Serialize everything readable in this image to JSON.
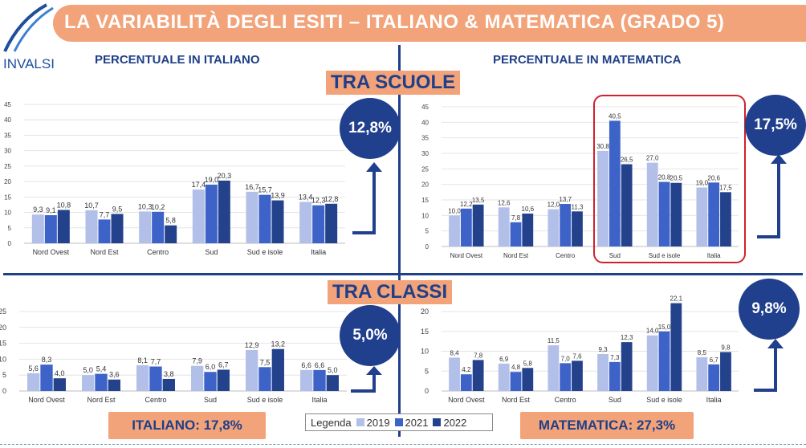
{
  "header": {
    "title": "LA VARIABILITÀ DEGLI ESITI – ITALIANO & MATEMATICA (GRADO 5)",
    "logo": "INVALSI"
  },
  "panels": {
    "left_title": "PERCENTUALE IN ITALIANO",
    "right_title": "PERCENTUALE IN MATEMATICA"
  },
  "sections": {
    "schools": "TRA SCUOLE",
    "classes": "TRA CLASSI"
  },
  "badges": {
    "ita_scuole": "12,8%",
    "mat_scuole": "17,5%",
    "ita_classi": "5,0%",
    "mat_classi": "9,8%"
  },
  "totals": {
    "italiano": "ITALIANO: 17,8%",
    "matematica": "MATEMATICA: 27,3%"
  },
  "legend": {
    "title": "Legenda",
    "items": [
      "2019",
      "2021",
      "2022"
    ]
  },
  "colors": {
    "s2019": "#b2bfe8",
    "s2021": "#3d63c9",
    "s2022": "#24428c",
    "orange": "#f2a37a",
    "navy": "#1f3f88",
    "red": "#d0212e"
  },
  "chart_data": [
    {
      "id": "ita_scuole",
      "type": "bar",
      "categories": [
        "Nord Ovest",
        "Nord Est",
        "Centro",
        "Sud",
        "Sud e isole",
        "Italia"
      ],
      "series": [
        {
          "name": "2019",
          "values": [
            9.3,
            10.7,
            10.3,
            17.4,
            16.7,
            13.4
          ]
        },
        {
          "name": "2021",
          "values": [
            9.1,
            7.7,
            10.2,
            19.0,
            15.7,
            12.3
          ]
        },
        {
          "name": "2022",
          "values": [
            10.8,
            9.5,
            5.8,
            20.3,
            13.9,
            12.8
          ]
        }
      ],
      "ylim": [
        0,
        45
      ],
      "yticks": [
        0,
        5,
        10,
        15,
        20,
        25,
        30,
        35,
        40,
        45
      ]
    },
    {
      "id": "mat_scuole",
      "type": "bar",
      "categories": [
        "Nord Ovest",
        "Nord Est",
        "Centro",
        "Sud",
        "Sud e isole",
        "Italia"
      ],
      "series": [
        {
          "name": "2019",
          "values": [
            10.0,
            12.6,
            12.0,
            30.8,
            27.0,
            19.0
          ]
        },
        {
          "name": "2021",
          "values": [
            12.2,
            7.8,
            13.7,
            40.5,
            20.8,
            20.6
          ]
        },
        {
          "name": "2022",
          "values": [
            13.5,
            10.6,
            11.3,
            26.5,
            20.5,
            17.5
          ]
        }
      ],
      "ylim": [
        0,
        45
      ],
      "yticks": [
        0,
        5,
        10,
        15,
        20,
        25,
        30,
        35,
        40,
        45
      ]
    },
    {
      "id": "ita_classi",
      "type": "bar",
      "categories": [
        "Nord Ovest",
        "Nord Est",
        "Centro",
        "Sud",
        "Sud e isole",
        "Italia"
      ],
      "series": [
        {
          "name": "2019",
          "values": [
            5.6,
            5.0,
            8.1,
            7.9,
            12.9,
            6.6
          ]
        },
        {
          "name": "2021",
          "values": [
            8.3,
            5.4,
            7.7,
            6.0,
            7.5,
            6.6
          ]
        },
        {
          "name": "2022",
          "values": [
            4.0,
            3.6,
            3.8,
            6.7,
            13.2,
            5.0
          ]
        }
      ],
      "ylim": [
        0,
        25
      ],
      "yticks": [
        0,
        5,
        10,
        15,
        20,
        25
      ]
    },
    {
      "id": "mat_classi",
      "type": "bar",
      "categories": [
        "Nord Ovest",
        "Nord Est",
        "Centro",
        "Sud",
        "Sud e isole",
        "Italia"
      ],
      "series": [
        {
          "name": "2019",
          "values": [
            8.4,
            6.9,
            11.5,
            9.3,
            14.0,
            8.5
          ]
        },
        {
          "name": "2021",
          "values": [
            4.2,
            4.8,
            7.0,
            7.3,
            15.0,
            6.7
          ]
        },
        {
          "name": "2022",
          "values": [
            7.8,
            5.8,
            7.6,
            12.3,
            22.1,
            9.8
          ]
        }
      ],
      "ylim": [
        0,
        20
      ],
      "yticks": [
        0,
        5,
        10,
        15,
        20
      ]
    }
  ]
}
